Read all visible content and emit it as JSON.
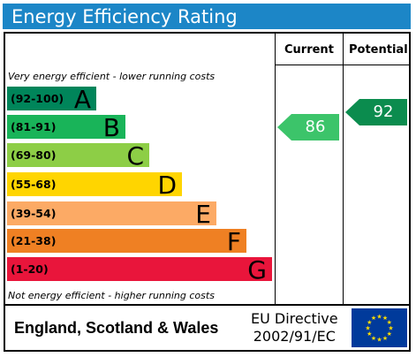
{
  "title": "Energy Efficiency Rating",
  "columns": {
    "current": "Current",
    "potential": "Potential"
  },
  "captions": {
    "top": "Very energy efficient - lower running costs",
    "bottom": "Not energy efficient - higher running costs"
  },
  "bands": [
    {
      "range": "(92-100)",
      "letter": "A",
      "color": "#00855a"
    },
    {
      "range": "(81-91)",
      "letter": "B",
      "color": "#19b459"
    },
    {
      "range": "(69-80)",
      "letter": "C",
      "color": "#8dce46"
    },
    {
      "range": "(55-68)",
      "letter": "D",
      "color": "#ffd500"
    },
    {
      "range": "(39-54)",
      "letter": "E",
      "color": "#fcaa65"
    },
    {
      "range": "(21-38)",
      "letter": "F",
      "color": "#ef8023"
    },
    {
      "range": "(1-20)",
      "letter": "G",
      "color": "#e9153b"
    }
  ],
  "current": {
    "value": "86",
    "color": "#3cc46a"
  },
  "potential": {
    "value": "92",
    "color": "#0b8c4e"
  },
  "footer": {
    "country": "England, Scotland & Wales",
    "directive_line1": "EU Directive",
    "directive_line2": "2002/91/EC"
  },
  "flag_icon": "eu-flag-icon"
}
